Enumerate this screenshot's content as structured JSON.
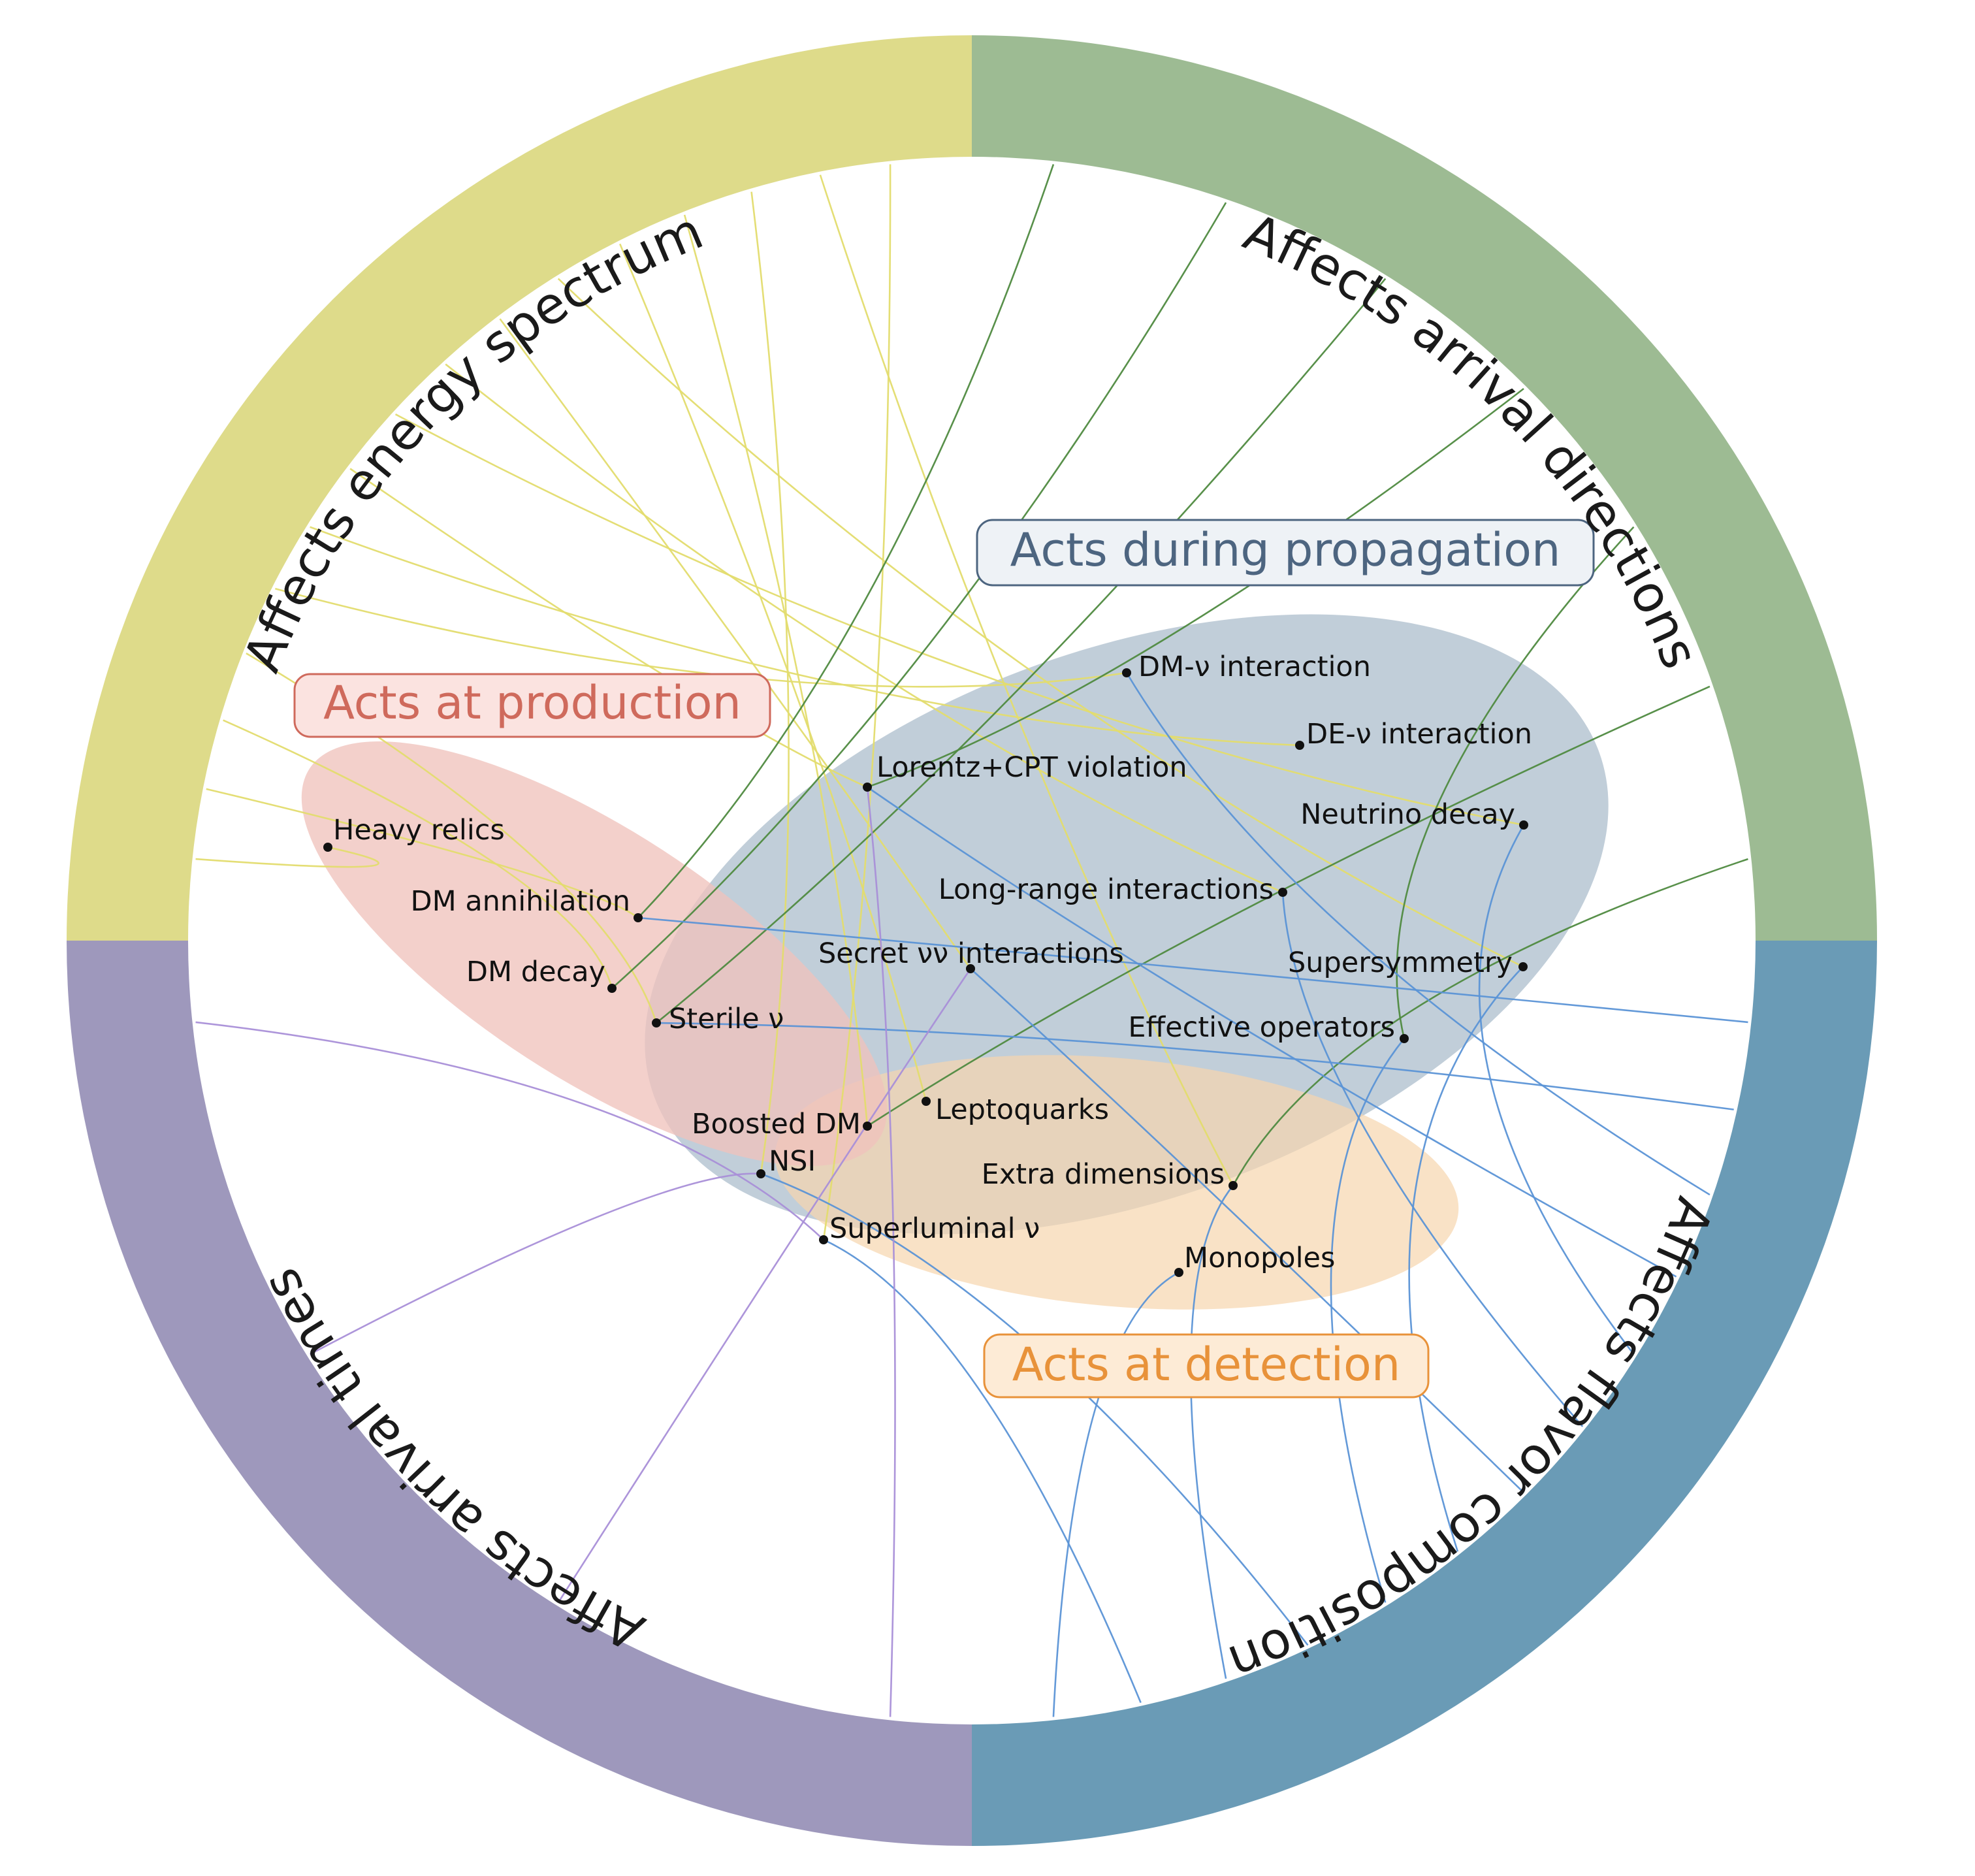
{
  "ring": {
    "segments": [
      {
        "id": "energy",
        "label": "Affects energy spectrum",
        "color": "#dedb8a"
      },
      {
        "id": "directions",
        "label": "Affects arrival directions",
        "color": "#9dbb93"
      },
      {
        "id": "flavor",
        "label": "Affects flavor composition",
        "color": "#6a9bb6"
      },
      {
        "id": "times",
        "label": "Affects arrival times",
        "color": "#9e98bc"
      }
    ]
  },
  "stages": {
    "propagation": {
      "label": "Acts during propagation",
      "fill": "#bccad6",
      "box_fill": "#eef2f6",
      "text_color": "#4d6580"
    },
    "production": {
      "label": "Acts at production",
      "fill": "#efc3bc",
      "box_fill": "#fbe3e0",
      "text_color": "#cf6a5c"
    },
    "detection": {
      "label": "Acts at detection",
      "fill": "#f6d6ae",
      "box_fill": "#fdebd6",
      "text_color": "#e8923a"
    }
  },
  "curve_colors": {
    "energy": "#e3dc6e",
    "directions": "#4f8a40",
    "flavor": "#5b93d6",
    "times": "#a98fd8"
  },
  "nodes": [
    {
      "id": "heavy-relics",
      "label": "Heavy relics"
    },
    {
      "id": "dm-annihilation",
      "label": "DM annihilation"
    },
    {
      "id": "dm-decay",
      "label": "DM decay"
    },
    {
      "id": "sterile",
      "label": "Sterile ν"
    },
    {
      "id": "dm-nu",
      "label": "DM-ν interaction"
    },
    {
      "id": "de-nu",
      "label": "DE-ν interaction"
    },
    {
      "id": "lorentz",
      "label": "Lorentz+CPT violation"
    },
    {
      "id": "nu-decay",
      "label": "Neutrino decay"
    },
    {
      "id": "long-range",
      "label": "Long-range interactions"
    },
    {
      "id": "secret",
      "label": "Secret νν interactions"
    },
    {
      "id": "susy",
      "label": "Supersymmetry"
    },
    {
      "id": "eff-ops",
      "label": "Effective operators"
    },
    {
      "id": "leptoquarks",
      "label": "Leptoquarks"
    },
    {
      "id": "boosted-dm",
      "label": "Boosted DM"
    },
    {
      "id": "nsi",
      "label": "NSI"
    },
    {
      "id": "extra-dim",
      "label": "Extra dimensions"
    },
    {
      "id": "superluminal",
      "label": "Superluminal ν"
    },
    {
      "id": "monopoles",
      "label": "Monopoles"
    }
  ],
  "links": {
    "energy": [
      "heavy-relics",
      "dm-annihilation",
      "dm-decay",
      "sterile",
      "dm-nu",
      "de-nu",
      "lorentz",
      "nu-decay",
      "long-range",
      "secret",
      "susy",
      "leptoquarks",
      "boosted-dm",
      "nsi",
      "extra-dim",
      "superluminal"
    ],
    "directions": [
      "dm-annihilation",
      "dm-decay",
      "sterile",
      "lorentz",
      "eff-ops",
      "boosted-dm",
      "extra-dim"
    ],
    "flavor": [
      "dm-annihilation",
      "sterile",
      "dm-nu",
      "lorentz",
      "nu-decay",
      "long-range",
      "secret",
      "susy",
      "eff-ops",
      "nsi",
      "extra-dim",
      "superluminal",
      "monopoles"
    ],
    "times": [
      "lorentz",
      "secret",
      "nsi",
      "superluminal"
    ]
  }
}
